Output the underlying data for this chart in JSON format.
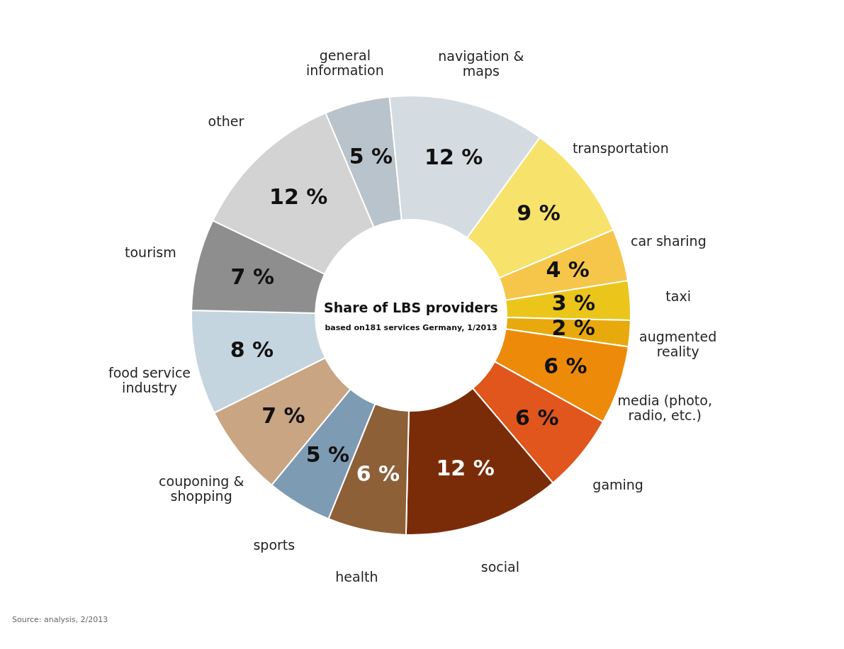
{
  "chart_data": {
    "type": "donut",
    "title": "Share of LBS providers",
    "subtitle": "based on181 services Germany, 1/2013",
    "categories": [
      "general information",
      "navigation & maps",
      "transportation",
      "car sharing",
      "taxi",
      "augmented reality",
      "media (photo, radio, etc.)",
      "gaming",
      "social",
      "health",
      "sports",
      "couponing & shopping",
      "food service industry",
      "tourism",
      "other"
    ],
    "values": [
      5,
      12,
      9,
      4,
      3,
      2,
      6,
      6,
      12,
      6,
      5,
      7,
      8,
      7,
      12
    ],
    "value_labels": [
      "5 %",
      "12 %",
      "9 %",
      "4 %",
      "3 %",
      "2 %",
      "6 %",
      "6 %",
      "12 %",
      "6 %",
      "5 %",
      "7 %",
      "8 %",
      "7 %",
      "12 %"
    ],
    "colors": [
      "#b9c3cb",
      "#d4dce2",
      "#f7e26b",
      "#f6c64a",
      "#ecc51a",
      "#e8a90c",
      "#ee8a0a",
      "#e0561c",
      "#7a2c08",
      "#8e6038",
      "#7d9bb3",
      "#c9a583",
      "#c5d5df",
      "#8e8e8e",
      "#d3d3d3"
    ],
    "annotations": [
      "Source: analysis, 2/2013"
    ],
    "legend": false
  }
}
